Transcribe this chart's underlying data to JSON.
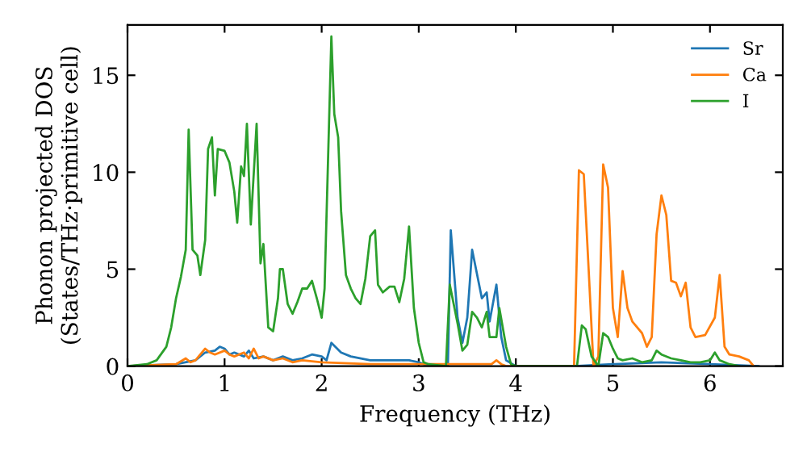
{
  "chart_data": {
    "type": "line",
    "xlabel": "Frequency (THz)",
    "ylabel": "Phonon projected DOS\n(States/THz·primitive cell)",
    "xlim": [
      0,
      6.75
    ],
    "ylim": [
      0,
      17.6
    ],
    "xticks": [
      0,
      1,
      2,
      3,
      4,
      5,
      6
    ],
    "yticks": [
      0,
      5,
      10,
      15
    ],
    "grid": false,
    "legend": "top right",
    "marker": "none",
    "line_style": "solid",
    "series": [
      {
        "name": "Sr",
        "color": "#1f77b4",
        "x": [
          0,
          0.5,
          0.7,
          0.8,
          0.9,
          0.95,
          1.0,
          1.05,
          1.1,
          1.2,
          1.25,
          1.3,
          1.4,
          1.5,
          1.6,
          1.7,
          1.8,
          1.9,
          2.0,
          2.05,
          2.1,
          2.2,
          2.3,
          2.5,
          2.7,
          2.9,
          3.0,
          3.1,
          3.3,
          3.33,
          3.4,
          3.45,
          3.5,
          3.55,
          3.65,
          3.7,
          3.73,
          3.8,
          3.85,
          3.9,
          4.0,
          4.6,
          5.0,
          5.5,
          6.0,
          6.5
        ],
        "values": [
          0,
          0.1,
          0.3,
          0.7,
          0.8,
          1.0,
          0.9,
          0.6,
          0.7,
          0.5,
          0.8,
          0.4,
          0.5,
          0.3,
          0.5,
          0.3,
          0.4,
          0.6,
          0.5,
          0.3,
          1.2,
          0.7,
          0.5,
          0.3,
          0.3,
          0.3,
          0.2,
          0,
          0,
          7,
          2.5,
          1.2,
          2.5,
          6,
          3.5,
          3.8,
          2.3,
          4.2,
          1.5,
          0.3,
          0,
          0,
          0.1,
          0.2,
          0.1,
          0
        ]
      },
      {
        "name": "Ca",
        "color": "#ff7f0e",
        "x": [
          0,
          0.5,
          0.6,
          0.65,
          0.7,
          0.8,
          0.85,
          0.9,
          1.0,
          1.05,
          1.1,
          1.2,
          1.25,
          1.3,
          1.35,
          1.4,
          1.5,
          1.6,
          1.7,
          1.8,
          2.0,
          2.5,
          3.0,
          3.5,
          3.75,
          3.8,
          3.85,
          3.9,
          4.6,
          4.65,
          4.7,
          4.75,
          4.8,
          4.85,
          4.9,
          4.95,
          5.0,
          5.05,
          5.1,
          5.15,
          5.2,
          5.3,
          5.35,
          5.4,
          5.45,
          5.5,
          5.55,
          5.6,
          5.65,
          5.7,
          5.75,
          5.8,
          5.85,
          5.95,
          6.05,
          6.1,
          6.15,
          6.2,
          6.3,
          6.4,
          6.45
        ],
        "values": [
          0,
          0.1,
          0.4,
          0.2,
          0.3,
          0.9,
          0.7,
          0.6,
          0.8,
          0.6,
          0.5,
          0.7,
          0.4,
          0.9,
          0.4,
          0.5,
          0.3,
          0.4,
          0.2,
          0.3,
          0.2,
          0.1,
          0.1,
          0.1,
          0.1,
          0.3,
          0.1,
          0,
          0,
          10.1,
          9.9,
          5,
          0,
          0.5,
          10.4,
          9.2,
          3,
          1.5,
          4.9,
          3,
          2.3,
          1.7,
          1,
          1.5,
          6.8,
          8.8,
          7.8,
          4.4,
          4.3,
          3.6,
          4.3,
          2,
          1.5,
          1.6,
          2.5,
          4.7,
          1,
          0.6,
          0.5,
          0.3,
          0
        ]
      },
      {
        "name": "I",
        "color": "#2ca02c",
        "x": [
          0,
          0.2,
          0.3,
          0.4,
          0.45,
          0.5,
          0.55,
          0.6,
          0.63,
          0.67,
          0.72,
          0.75,
          0.8,
          0.83,
          0.87,
          0.9,
          0.93,
          1.0,
          1.05,
          1.1,
          1.13,
          1.17,
          1.2,
          1.23,
          1.27,
          1.33,
          1.37,
          1.4,
          1.45,
          1.5,
          1.55,
          1.57,
          1.6,
          1.65,
          1.7,
          1.75,
          1.8,
          1.85,
          1.9,
          1.95,
          2.0,
          2.03,
          2.1,
          2.13,
          2.17,
          2.2,
          2.25,
          2.3,
          2.35,
          2.4,
          2.45,
          2.5,
          2.55,
          2.58,
          2.63,
          2.7,
          2.75,
          2.8,
          2.85,
          2.9,
          2.95,
          3.0,
          3.05,
          3.1,
          3.28,
          3.32,
          3.4,
          3.45,
          3.5,
          3.55,
          3.6,
          3.65,
          3.7,
          3.73,
          3.8,
          3.83,
          3.9,
          3.95,
          4.0,
          4.63,
          4.68,
          4.72,
          4.78,
          4.85,
          4.9,
          4.95,
          5.0,
          5.05,
          5.1,
          5.2,
          5.3,
          5.4,
          5.45,
          5.5,
          5.6,
          5.7,
          5.8,
          5.9,
          6.0,
          6.05,
          6.1,
          6.2,
          6.3
        ],
        "values": [
          0,
          0.1,
          0.3,
          1.0,
          2,
          3.5,
          4.6,
          6,
          12.2,
          6,
          5.7,
          4.7,
          6.5,
          11.2,
          11.8,
          8.8,
          11.2,
          11.1,
          10.5,
          9,
          7.4,
          10.3,
          9.8,
          12.5,
          7.3,
          12.5,
          5.3,
          6.3,
          2,
          1.8,
          3.5,
          5,
          5,
          3.2,
          2.7,
          3.3,
          4,
          4,
          4.4,
          3.5,
          2.5,
          4,
          17,
          13,
          11.8,
          8,
          4.7,
          4,
          3.5,
          3.2,
          4.5,
          6.7,
          7,
          4.2,
          3.8,
          4.1,
          4.1,
          3.3,
          4.5,
          7.2,
          3,
          1.2,
          0.2,
          0.1,
          0,
          4.2,
          2.2,
          0.8,
          1.1,
          2.8,
          2.5,
          2,
          2.8,
          1.5,
          1.5,
          3,
          1,
          0.1,
          0,
          0,
          2.1,
          1.9,
          0.5,
          0,
          1.7,
          1.5,
          0.9,
          0.4,
          0.3,
          0.4,
          0.2,
          0.3,
          0.8,
          0.6,
          0.4,
          0.3,
          0.2,
          0.2,
          0.3,
          0.7,
          0.3,
          0.1,
          0
        ]
      }
    ]
  }
}
